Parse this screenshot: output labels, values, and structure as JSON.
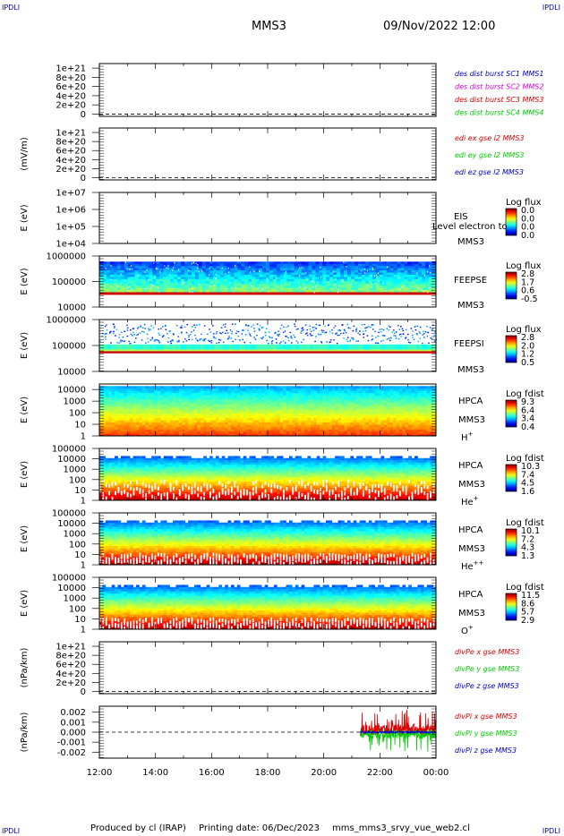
{
  "header": {
    "corner_left_top": "IPDLI",
    "corner_right_top": "IPDLI",
    "corner_left_bottom": "IPDLI",
    "corner_right_bottom": "IPDLI",
    "spacecraft": "MMS3",
    "datetime": "09/Nov/2022 12:00"
  },
  "footer": {
    "producer": "Produced by cl (IRAP)",
    "printing": "Printing date: 06/Dec/2023",
    "script": "mms_mms3_srvy_vue_web2.cl"
  },
  "colors": {
    "blue": "#0000cc",
    "magenta": "#dd00dd",
    "red": "#dd0000",
    "green": "#00cc00"
  },
  "chart_data": [
    {
      "type": "line",
      "ylabel": "",
      "y_ticks": [
        "1e+21",
        "8e+20",
        "6e+20",
        "4e+20",
        "2e+20",
        "0"
      ],
      "y_tick_values": [
        1e+21,
        8e+20,
        6e+20,
        4e+20,
        2e+20,
        0
      ],
      "ylim": [
        -5e+19,
        1.1e+21
      ],
      "legend": [
        {
          "name": "des dist burst SC1 MMS1",
          "color": "#0000cc"
        },
        {
          "name": "des dist burst SC2 MMS2",
          "color": "#dd00dd"
        },
        {
          "name": "des dist burst SC3 MMS3",
          "color": "#dd0000"
        },
        {
          "name": "des dist burst SC4 MMS4",
          "color": "#00cc00"
        }
      ],
      "zero_line": true,
      "series": []
    },
    {
      "type": "line",
      "ylabel": "(mV/m)",
      "y_ticks": [
        "1e+21",
        "8e+20",
        "6e+20",
        "4e+20",
        "2e+20",
        "0"
      ],
      "y_tick_values": [
        1e+21,
        8e+20,
        6e+20,
        4e+20,
        2e+20,
        0
      ],
      "ylim": [
        -5e+19,
        1.1e+21
      ],
      "legend": [
        {
          "name": "edi ex gse l2 MMS3",
          "color": "#dd0000"
        },
        {
          "name": "edi ey gse l2 MMS3",
          "color": "#00cc00"
        },
        {
          "name": "edi ez gse l2 MMS3",
          "color": "#0000cc"
        }
      ],
      "zero_line": true,
      "series": []
    },
    {
      "type": "heatmap",
      "ylabel": "E (eV)",
      "y_ticks": [
        "1e+07",
        "1e+06",
        "1e+05",
        "1e+04"
      ],
      "log_y": true,
      "ylim": [
        10000,
        10000000
      ],
      "instrument": [
        "EIS",
        "MMS3"
      ],
      "overlay_text": "Level electron to",
      "colorbar": {
        "title": "Log flux",
        "ticks": [
          "0.0",
          "0.0",
          "0.0",
          "0.0"
        ]
      },
      "empty": true
    },
    {
      "type": "heatmap",
      "ylabel": "E (eV)",
      "y_ticks": [
        "1000000",
        "100000",
        "10000"
      ],
      "log_y": true,
      "ylim": [
        10000,
        1000000
      ],
      "instrument": [
        "FEEPSE",
        "MMS3"
      ],
      "colorbar": {
        "title": "Log flux",
        "ticks": [
          "2.8",
          "1.7",
          "0.6",
          "-0.5"
        ]
      },
      "empty": false
    },
    {
      "type": "heatmap",
      "ylabel": "E (eV)",
      "y_ticks": [
        "1000000",
        "100000",
        "10000"
      ],
      "log_y": true,
      "ylim": [
        10000,
        1000000
      ],
      "instrument": [
        "FEEPSI",
        "MMS3"
      ],
      "colorbar": {
        "title": "Log flux",
        "ticks": [
          "2.8",
          "2.0",
          "1.2",
          "0.5"
        ]
      },
      "empty": false
    },
    {
      "type": "heatmap",
      "ylabel": "E (eV)",
      "y_ticks": [
        "10000",
        "1000",
        "100",
        "10",
        "1"
      ],
      "log_y": true,
      "ylim": [
        1,
        30000
      ],
      "instrument": [
        "HPCA",
        "MMS3",
        "H+"
      ],
      "colorbar": {
        "title": "Log fdist",
        "ticks": [
          "9.3",
          "6.4",
          "3.4",
          "0.4"
        ]
      },
      "empty": false
    },
    {
      "type": "heatmap",
      "ylabel": "E (eV)",
      "y_ticks": [
        "100000",
        "10000",
        "1000",
        "100",
        "10",
        "1"
      ],
      "log_y": true,
      "ylim": [
        1,
        100000
      ],
      "instrument": [
        "HPCA",
        "MMS3",
        "He+"
      ],
      "colorbar": {
        "title": "Log fdist",
        "ticks": [
          "10.3",
          "7.4",
          "4.5",
          "1.6"
        ]
      },
      "empty": false
    },
    {
      "type": "heatmap",
      "ylabel": "E (eV)",
      "y_ticks": [
        "100000",
        "10000",
        "1000",
        "100",
        "10",
        "1"
      ],
      "log_y": true,
      "ylim": [
        1,
        100000
      ],
      "instrument": [
        "HPCA",
        "MMS3",
        "He++"
      ],
      "colorbar": {
        "title": "Log fdist",
        "ticks": [
          "10.1",
          "7.2",
          "4.3",
          "1.3"
        ]
      },
      "empty": false
    },
    {
      "type": "heatmap",
      "ylabel": "E (eV)",
      "y_ticks": [
        "100000",
        "10000",
        "1000",
        "100",
        "10",
        "1"
      ],
      "log_y": true,
      "ylim": [
        1,
        100000
      ],
      "instrument": [
        "HPCA",
        "MMS3",
        "O+"
      ],
      "colorbar": {
        "title": "Log fdist",
        "ticks": [
          "11.5",
          "8.6",
          "5.7",
          "2.9"
        ]
      },
      "empty": false
    },
    {
      "type": "line",
      "ylabel": "(nPa/km)",
      "y_ticks": [
        "1e+21",
        "8e+20",
        "6e+20",
        "4e+20",
        "2e+20",
        "0"
      ],
      "y_tick_values": [
        1e+21,
        8e+20,
        6e+20,
        4e+20,
        2e+20,
        0
      ],
      "ylim": [
        -5e+19,
        1.1e+21
      ],
      "legend": [
        {
          "name": "divPe x gse MMS3",
          "color": "#dd0000"
        },
        {
          "name": "divPe y gse MMS3",
          "color": "#00cc00"
        },
        {
          "name": "divPe z gse MMS3",
          "color": "#0000cc"
        }
      ],
      "zero_line": true,
      "series": []
    },
    {
      "type": "line",
      "ylabel": "(nPa/km)",
      "y_ticks": [
        "0.002",
        "0.001",
        "0.000",
        "-0.001",
        "-0.002"
      ],
      "y_tick_values": [
        0.002,
        0.001,
        0,
        -0.001,
        -0.002
      ],
      "ylim": [
        -0.0026,
        0.0026
      ],
      "legend": [
        {
          "name": "divPi x gse MMS3",
          "color": "#dd0000"
        },
        {
          "name": "divPi y gse MMS3",
          "color": "#00cc00"
        },
        {
          "name": "divPi z gse MMS3",
          "color": "#0000cc"
        }
      ],
      "zero_line": true,
      "data_start_hours": 9.3,
      "data_end_hours": 12.0,
      "series": [
        {
          "name": "divPi x gse MMS3",
          "color": "#dd0000",
          "amplitude": 0.0011,
          "offset": 0.0002
        },
        {
          "name": "divPi y gse MMS3",
          "color": "#00cc00",
          "amplitude": 0.0009,
          "offset": -0.0002
        },
        {
          "name": "divPi z gse MMS3",
          "color": "#0000cc",
          "amplitude": 0.0002,
          "offset": 0.0
        }
      ]
    }
  ],
  "time_axis": {
    "labels": [
      "12:00",
      "14:00",
      "16:00",
      "18:00",
      "20:00",
      "22:00",
      "00:00"
    ],
    "range_hours": [
      0,
      12
    ]
  }
}
